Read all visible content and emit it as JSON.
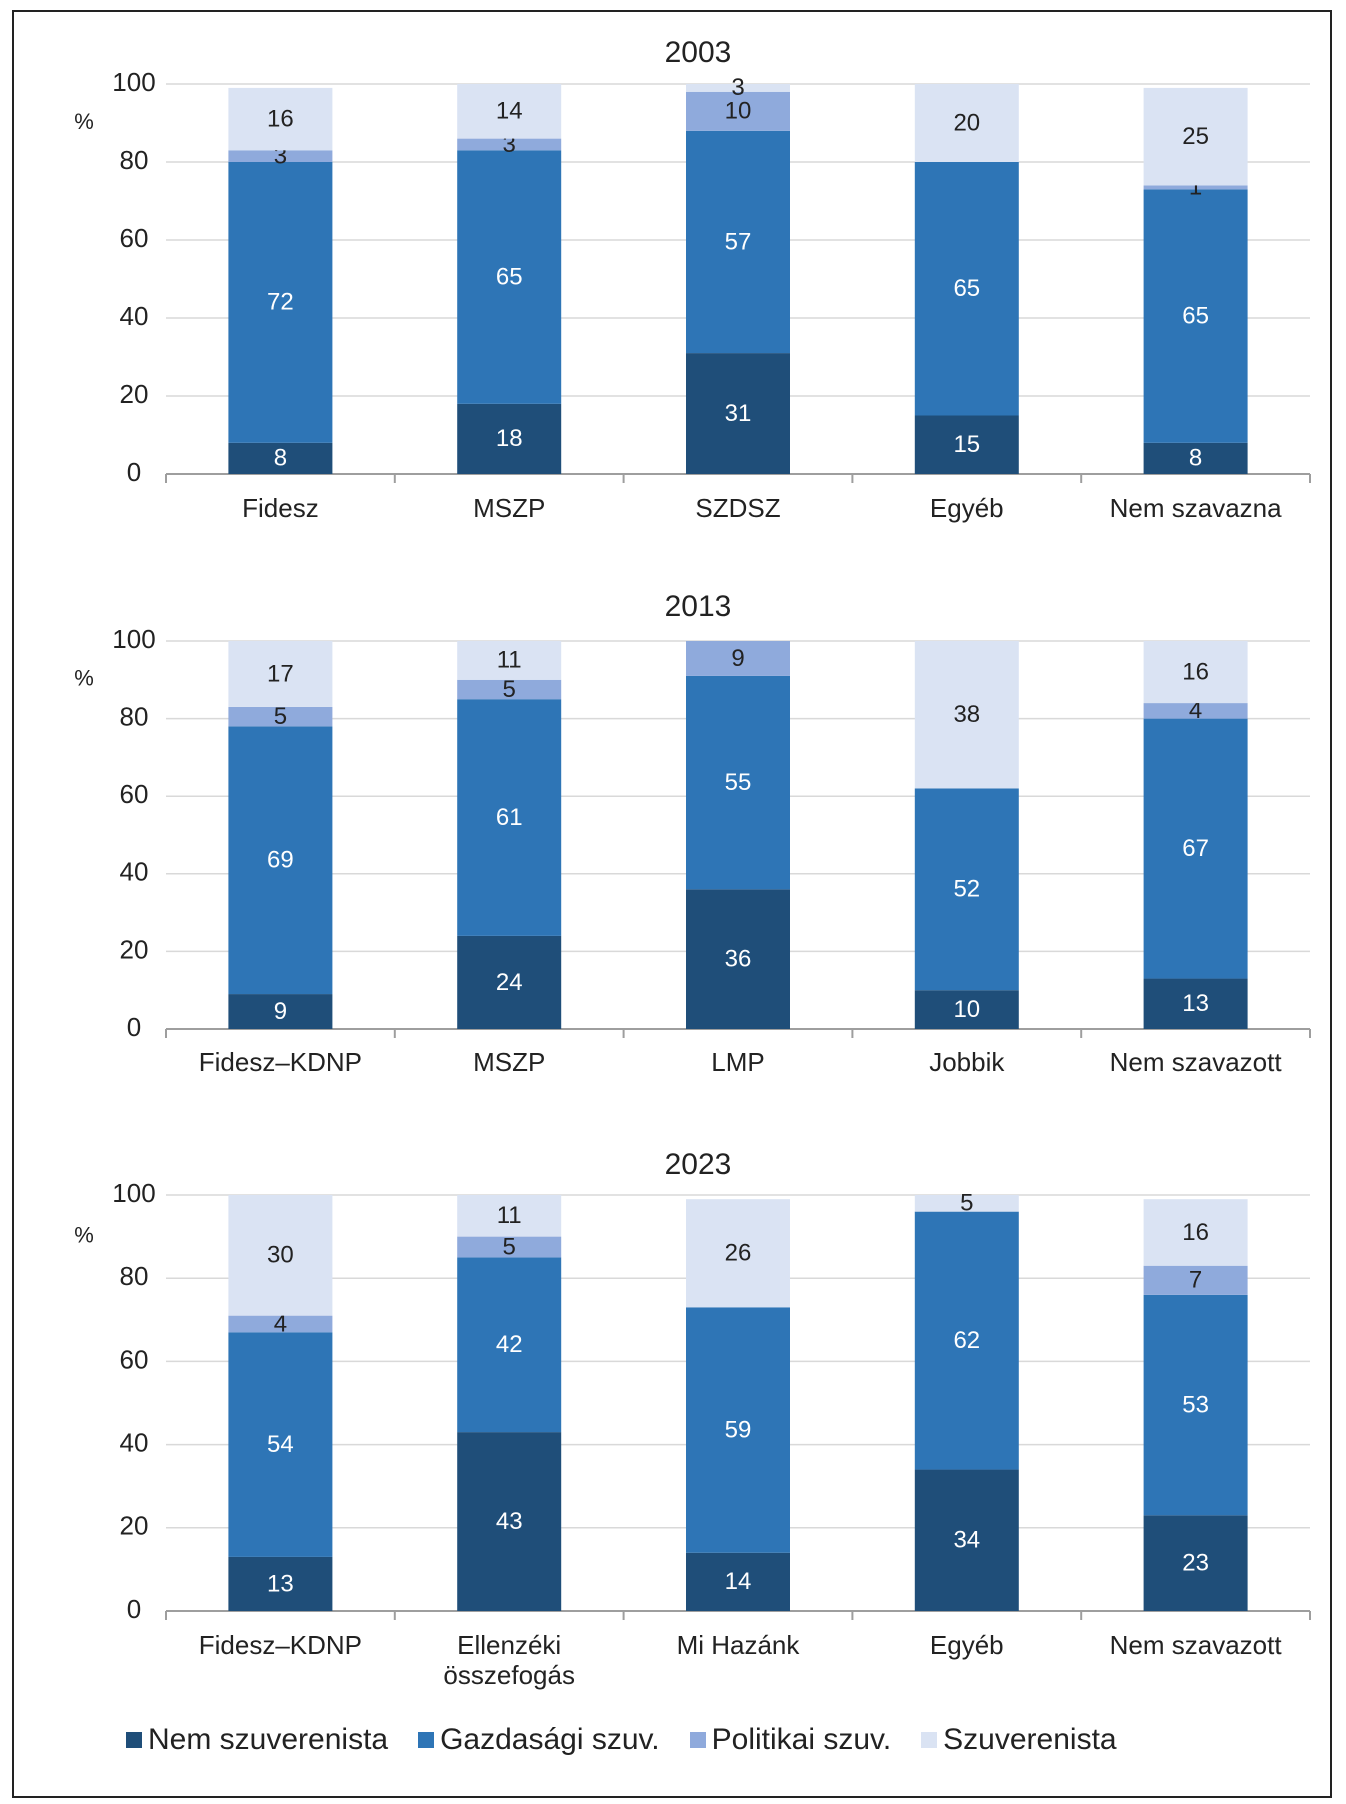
{
  "colors": {
    "nem_szuverenista": "#1f4e79",
    "gazdasagi": "#2e75b6",
    "politikai": "#8faadc",
    "szuverenista": "#dae3f3"
  },
  "legend": [
    {
      "name": "Nem szuverenista",
      "color": "#1f4e79"
    },
    {
      "name": "Gazdasági szuv.",
      "color": "#2e75b6"
    },
    {
      "name": "Politikai szuv.",
      "color": "#8faadc"
    },
    {
      "name": "Szuverenista",
      "color": "#dae3f3"
    }
  ],
  "chart_data": [
    {
      "type": "bar",
      "stacked": true,
      "title": "2003",
      "ylabel": "%",
      "ylim": [
        0,
        100
      ],
      "yticks": [
        "0",
        "20",
        "40",
        "60",
        "80",
        "100"
      ],
      "categories": [
        [
          "Fidesz"
        ],
        [
          "MSZP"
        ],
        [
          "SZDSZ"
        ],
        [
          "Egyéb"
        ],
        [
          "Nem szavazna"
        ]
      ],
      "series": [
        {
          "name": "Nem szuverenista",
          "values": [
            8,
            18,
            31,
            15,
            8
          ]
        },
        {
          "name": "Gazdasági szuv.",
          "values": [
            72,
            65,
            57,
            65,
            65
          ]
        },
        {
          "name": "Politikai szuv.",
          "values": [
            3,
            3,
            10,
            0,
            1
          ]
        },
        {
          "name": "Szuverenista",
          "values": [
            16,
            14,
            3,
            20,
            25
          ]
        }
      ]
    },
    {
      "type": "bar",
      "stacked": true,
      "title": "2013",
      "ylabel": "%",
      "ylim": [
        0,
        100
      ],
      "yticks": [
        "0",
        "20",
        "40",
        "60",
        "80",
        "100"
      ],
      "categories": [
        [
          "Fidesz–KDNP"
        ],
        [
          "MSZP"
        ],
        [
          "LMP"
        ],
        [
          "Jobbik"
        ],
        [
          "Nem szavazott"
        ]
      ],
      "series": [
        {
          "name": "Nem szuverenista",
          "values": [
            9,
            24,
            36,
            10,
            13
          ]
        },
        {
          "name": "Gazdasági szuv.",
          "values": [
            69,
            61,
            55,
            52,
            67
          ]
        },
        {
          "name": "Politikai szuv.",
          "values": [
            5,
            5,
            9,
            0,
            4
          ]
        },
        {
          "name": "Szuverenista",
          "values": [
            17,
            11,
            0,
            38,
            16
          ]
        }
      ]
    },
    {
      "type": "bar",
      "stacked": true,
      "title": "2023",
      "ylabel": "%",
      "ylim": [
        0,
        100
      ],
      "yticks": [
        "0",
        "20",
        "40",
        "60",
        "80",
        "100"
      ],
      "categories": [
        [
          "Fidesz–KDNP"
        ],
        [
          "Ellenzéki",
          "összefogás"
        ],
        [
          "Mi Hazánk"
        ],
        [
          "Egyéb"
        ],
        [
          "Nem szavazott"
        ]
      ],
      "series": [
        {
          "name": "Nem szuverenista",
          "values": [
            13,
            43,
            14,
            34,
            23
          ]
        },
        {
          "name": "Gazdasági szuv.",
          "values": [
            54,
            42,
            59,
            62,
            53
          ]
        },
        {
          "name": "Politikai szuv.",
          "values": [
            4,
            5,
            0,
            0,
            7
          ]
        },
        {
          "name": "Szuverenista",
          "values": [
            30,
            11,
            26,
            5,
            16
          ]
        }
      ]
    }
  ]
}
